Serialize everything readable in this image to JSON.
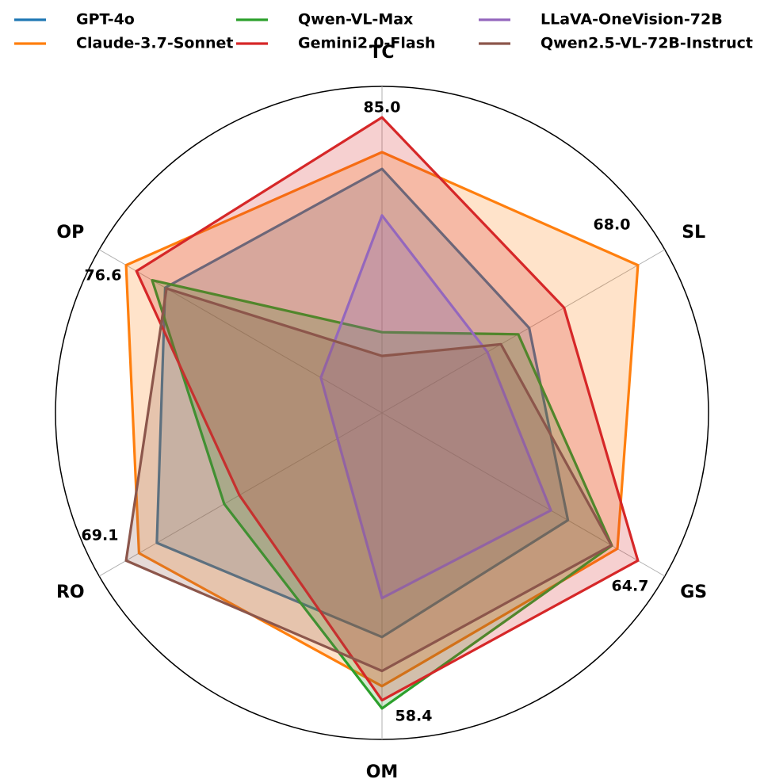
{
  "chart_data": {
    "type": "radar",
    "axes": [
      "TC",
      "SL",
      "GS",
      "OM",
      "RO",
      "OP"
    ],
    "axis_max": [
      {
        "value": 85,
        "label": "85.0"
      },
      {
        "value": 68,
        "label": "68.0"
      },
      {
        "value": 64.7,
        "label": "64.7"
      },
      {
        "value": 58.4,
        "label": "58.4"
      },
      {
        "value": 69.1,
        "label": "69.1"
      },
      {
        "value": 76.6,
        "label": "76.6"
      }
    ],
    "legend": "top",
    "series": [
      {
        "name": "GPT-4o",
        "color": "#1f77b4",
        "values": [
          70.2,
          39.1,
          47.0,
          44.3,
          60.8,
          64.9
        ]
      },
      {
        "name": "Claude-3.7-Sonnet",
        "color": "#ff7f0e",
        "values": [
          75.0,
          68.0,
          59.5,
          54.0,
          65.6,
          76.6
        ]
      },
      {
        "name": "Qwen-VL-Max",
        "color": "#2ca02c",
        "values": [
          23.2,
          36.2,
          58.1,
          58.4,
          42.6,
          68.8
        ]
      },
      {
        "name": "Gemini2.0-Flash",
        "color": "#d62728",
        "values": [
          85.0,
          48.4,
          64.7,
          56.8,
          38.5,
          73.5
        ]
      },
      {
        "name": "LLaVA-OneVision-72B",
        "color": "#9467bd",
        "values": [
          56.8,
          28.0,
          42.7,
          36.6,
          12.0,
          18.3
        ]
      },
      {
        "name": "Qwen2.5-VL-72B-Instruct",
        "color": "#8c564b",
        "values": [
          16.4,
          31.6,
          58.0,
          51.0,
          69.1,
          64.5
        ]
      }
    ]
  }
}
